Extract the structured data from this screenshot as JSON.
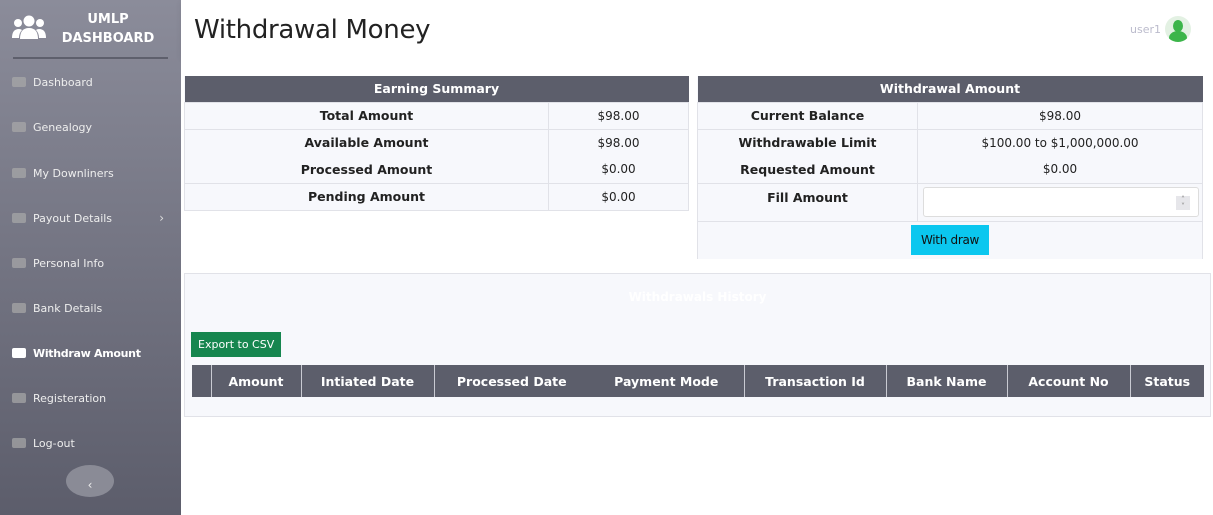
{
  "sidebar": {
    "brand_line1": "UMLP",
    "brand_line2": "DASHBOARD",
    "items": [
      {
        "label": "Dashboard",
        "icon": "dashboard-icon"
      },
      {
        "label": "Genealogy",
        "icon": "sitemap-icon"
      },
      {
        "label": "My Downliners",
        "icon": "hierarchy-icon"
      },
      {
        "label": "Payout Details",
        "icon": "money-icon",
        "has_submenu": true
      },
      {
        "label": "Personal Info",
        "icon": "user-icon"
      },
      {
        "label": "Bank Details",
        "icon": "piggy-bank-icon"
      },
      {
        "label": "Withdraw Amount",
        "icon": "wallet-icon",
        "active": true
      },
      {
        "label": "Registeration",
        "icon": "sign-in-icon"
      },
      {
        "label": "Log-out",
        "icon": "sign-out-icon"
      }
    ],
    "chevron": "›",
    "collapse": "‹"
  },
  "header": {
    "title": "Withdrawal Money",
    "user": "user1"
  },
  "earning": {
    "title": "Earning Summary",
    "rows": [
      {
        "label": "Total Amount",
        "value": "$98.00"
      },
      {
        "label": "Available Amount",
        "value": "$98.00"
      },
      {
        "label": "Processed Amount",
        "value": "$0.00"
      },
      {
        "label": "Pending Amount",
        "value": "$0.00"
      }
    ]
  },
  "withdrawal": {
    "title": "Withdrawal Amount",
    "rows": [
      {
        "label": "Current Balance",
        "value": "$98.00"
      },
      {
        "label": "Withdrawable Limit",
        "value": "$100.00 to $1,000,000.00"
      },
      {
        "label": "Requested Amount",
        "value": "$0.00"
      }
    ],
    "fill_label": "Fill Amount",
    "fill_value": "",
    "button": "With draw"
  },
  "history": {
    "title": "Withdrawals History",
    "export": "Export to CSV",
    "columns": [
      "",
      "Amount",
      "Intiated Date",
      "Processed Date",
      "Payment Mode",
      "Transaction Id",
      "Bank Name",
      "Account No",
      "Status"
    ]
  },
  "colors": {
    "header_dark": "#5c5e6b",
    "accent_cyan": "#0bc7ef",
    "export_green": "#16864f",
    "avatar_green": "#3cb54a"
  }
}
